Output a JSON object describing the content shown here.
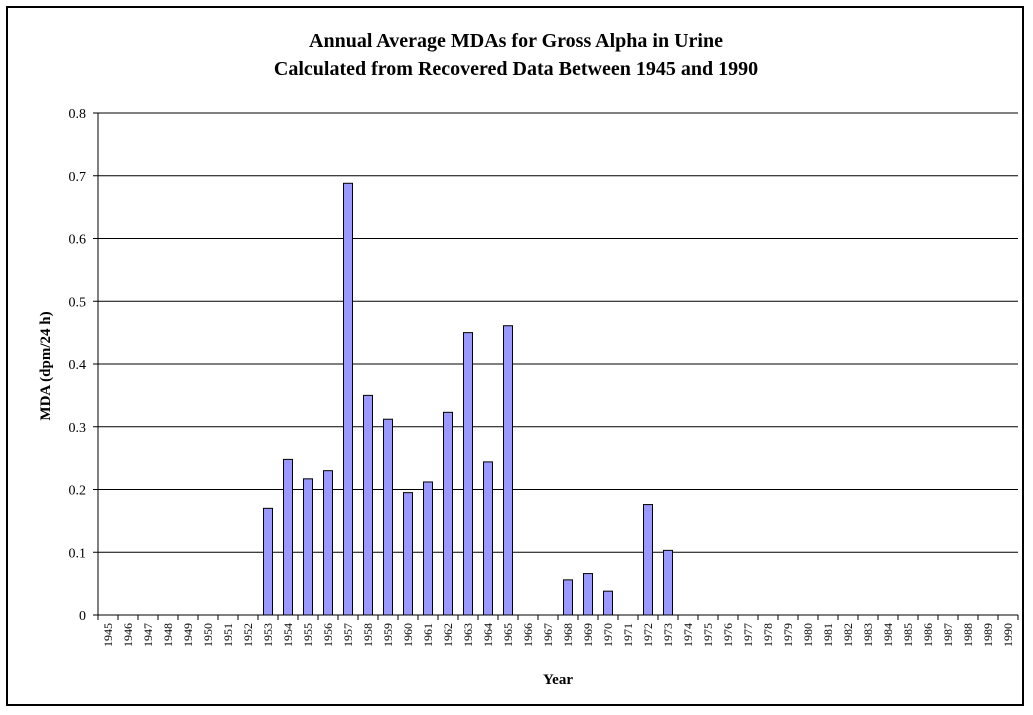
{
  "chart_data": {
    "type": "bar",
    "title": "Annual Average MDAs for Gross Alpha in Urine",
    "subtitle": "Calculated from Recovered Data Between 1945 and 1990",
    "xlabel": "Year",
    "ylabel": "MDA (dpm/24 h)",
    "ylim": [
      0,
      0.8
    ],
    "yticks": [
      "0",
      "0.1",
      "0.2",
      "0.3",
      "0.4",
      "0.5",
      "0.6",
      "0.7",
      "0.8"
    ],
    "grid": true,
    "bar_color": "#9999ff",
    "categories": [
      "1945",
      "1946",
      "1947",
      "1948",
      "1949",
      "1950",
      "1951",
      "1952",
      "1953",
      "1954",
      "1955",
      "1956",
      "1957",
      "1958",
      "1959",
      "1960",
      "1961",
      "1962",
      "1963",
      "1964",
      "1965",
      "1966",
      "1967",
      "1968",
      "1969",
      "1970",
      "1971",
      "1972",
      "1973",
      "1974",
      "1975",
      "1976",
      "1977",
      "1978",
      "1979",
      "1980",
      "1981",
      "1982",
      "1983",
      "1984",
      "1985",
      "1986",
      "1987",
      "1988",
      "1989",
      "1990"
    ],
    "values": [
      0,
      0,
      0,
      0,
      0,
      0,
      0,
      0,
      0.17,
      0.248,
      0.217,
      0.23,
      0.688,
      0.35,
      0.312,
      0.195,
      0.212,
      0.323,
      0.45,
      0.244,
      0.461,
      0,
      0,
      0.056,
      0.066,
      0.038,
      0,
      0.176,
      0.103,
      0,
      0,
      0,
      0,
      0,
      0,
      0,
      0,
      0,
      0,
      0,
      0,
      0,
      0,
      0,
      0,
      0
    ]
  }
}
